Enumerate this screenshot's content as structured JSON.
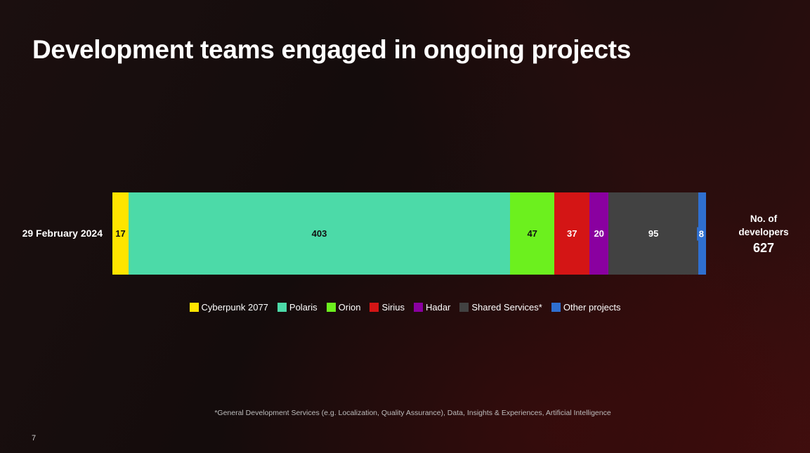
{
  "title": "Development teams engaged in ongoing projects",
  "page_number": "7",
  "footnote": "*General Development Services (e.g. Localization, Quality Assurance), Data, Insights & Experiences, Artificial Intelligence",
  "total": {
    "label_line1": "No. of",
    "label_line2": "developers",
    "value": "627"
  },
  "chart_data": {
    "type": "bar",
    "orientation": "horizontal",
    "stacked": true,
    "categories": [
      "29 February 2024"
    ],
    "series": [
      {
        "name": "Cyberpunk 2077",
        "values": [
          17
        ],
        "color": "#ffe500",
        "label_color": "#111111"
      },
      {
        "name": "Polaris",
        "values": [
          403
        ],
        "color": "#4cdaa8",
        "label_color": "#111111"
      },
      {
        "name": "Orion",
        "values": [
          47
        ],
        "color": "#6cf01e",
        "label_color": "#111111"
      },
      {
        "name": "Sirius",
        "values": [
          37
        ],
        "color": "#d41515",
        "label_color": "#ffffff"
      },
      {
        "name": "Hadar",
        "values": [
          20
        ],
        "color": "#8a00a0",
        "label_color": "#ffffff"
      },
      {
        "name": "Shared Services*",
        "values": [
          95
        ],
        "color": "#424242",
        "label_color": "#ffffff"
      },
      {
        "name": "Other projects",
        "values": [
          8
        ],
        "color": "#2f6fd0",
        "label_color": "#ffffff"
      }
    ],
    "legend_position": "bottom",
    "grid": false
  }
}
